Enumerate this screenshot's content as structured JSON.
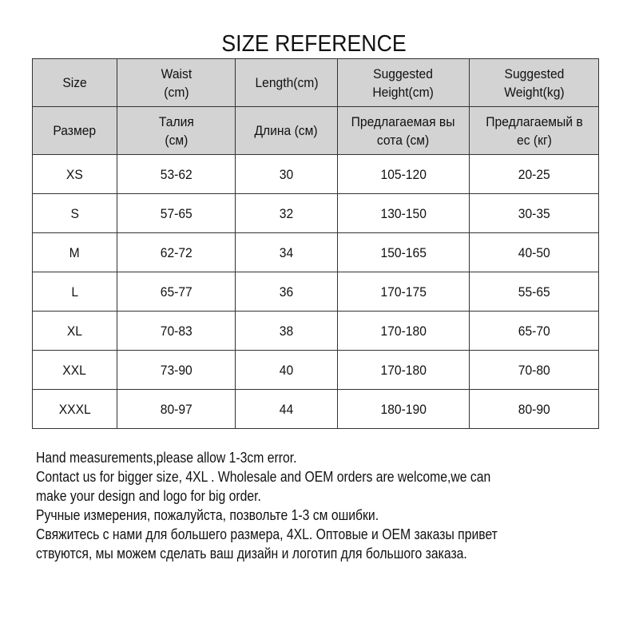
{
  "title": "SIZE REFERENCE",
  "header_en": [
    "Size",
    "Waist\n(cm)",
    "Length(cm)",
    "Suggested\nHeight(cm)",
    "Suggested\nWeight(kg)"
  ],
  "header_ru": [
    "Размер",
    "Талия\n(см)",
    "Длина (см)",
    "Предлагаемая вы\nсота (см)",
    "Предлагаемый в\nес (кг)"
  ],
  "rows": [
    [
      "XS",
      "53-62",
      "30",
      "105-120",
      "20-25"
    ],
    [
      "S",
      "57-65",
      "32",
      "130-150",
      "30-35"
    ],
    [
      "M",
      "62-72",
      "34",
      "150-165",
      "40-50"
    ],
    [
      "L",
      "65-77",
      "36",
      "170-175",
      "55-65"
    ],
    [
      "XL",
      "70-83",
      "38",
      "170-180",
      "65-70"
    ],
    [
      "XXL",
      "73-90",
      "40",
      "170-180",
      "70-80"
    ],
    [
      "XXXL",
      "80-97",
      "44",
      "180-190",
      "80-90"
    ]
  ],
  "notes": [
    "Hand measurements,please allow 1-3cm error.",
    "Contact us for bigger size, 4XL . Wholesale and OEM orders are welcome,we can",
    "make your design and logo for big order.",
    "Ручные измерения, пожалуйста, позвольте 1-3 см ошибки.",
    "Свяжитесь с нами для большего размера, 4XL. Оптовые и OEM заказы привет",
    "ствуются, мы можем сделать ваш дизайн и логотип для большого заказа."
  ],
  "colors": {
    "header_bg": "#d3d3d3",
    "border": "#333333"
  }
}
